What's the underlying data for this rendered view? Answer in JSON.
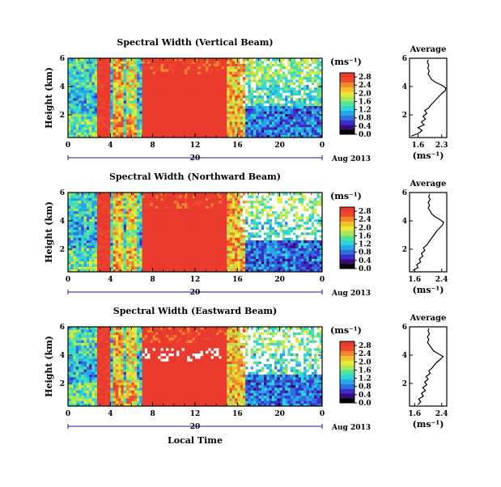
{
  "colors": {
    "colormap": [
      "#000000",
      "#3a0a78",
      "#3b2fc9",
      "#2f6fe0",
      "#27a7e8",
      "#2fd6d8",
      "#55e39a",
      "#a6e85a",
      "#e6e83a",
      "#f2c02c",
      "#f3862a",
      "#ec4a30",
      "#ea3a2e"
    ],
    "axis": "#000000",
    "date_axis_line": "#1a1aa0"
  },
  "xlabel": "Local Time",
  "date_label": "Aug 2013",
  "colorbar_unit": "(ms⁻¹)",
  "avg_title": "Average",
  "avg_unit": "(ms⁻¹)",
  "chart_data": [
    {
      "type": "heatmap",
      "title": "Spectral Width (Vertical Beam)",
      "ylabel": "Height (km)",
      "x_ticks": [
        "0",
        "4",
        "8",
        "12",
        "16",
        "20",
        "0"
      ],
      "y_ticks": [
        "6",
        "4",
        "2"
      ],
      "date_day": "20",
      "xlim": [
        0,
        24
      ],
      "ylim": [
        0.4,
        6
      ],
      "colorbar_ticks": [
        "2.8",
        "2.4",
        "2.0",
        "1.6",
        "1.2",
        "0.8",
        "0.4",
        "0.0"
      ],
      "clim": [
        0,
        3
      ],
      "avg": {
        "type": "line",
        "x_ticks": [
          "1.6",
          "2.3"
        ],
        "xlim": [
          1.35,
          2.45
        ],
        "y_ticks": [
          "6",
          "4",
          "2"
        ],
        "ylim": [
          0.4,
          6
        ],
        "height": [
          0.5,
          0.7,
          0.9,
          1.1,
          1.3,
          1.5,
          1.7,
          1.9,
          2.1,
          2.3,
          2.5,
          2.7,
          2.9,
          3.1,
          3.3,
          3.5,
          3.7,
          3.9,
          4.1,
          4.3,
          4.5,
          4.7,
          4.9,
          5.1,
          5.3,
          5.5,
          5.7,
          5.9
        ],
        "value": [
          1.4,
          1.62,
          1.72,
          1.6,
          1.78,
          1.7,
          1.82,
          1.75,
          1.86,
          1.8,
          1.92,
          1.98,
          2.06,
          2.14,
          2.22,
          2.3,
          2.4,
          2.42,
          2.3,
          2.12,
          2.0,
          1.95,
          1.9,
          1.93,
          1.89,
          1.92,
          1.88,
          1.9
        ]
      }
    },
    {
      "type": "heatmap",
      "title": "Spectral Width (Northward Beam)",
      "ylabel": "Height (km)",
      "x_ticks": [
        "0",
        "4",
        "8",
        "12",
        "16",
        "20",
        "0"
      ],
      "y_ticks": [
        "6",
        "4",
        "2"
      ],
      "date_day": "20",
      "xlim": [
        0,
        24
      ],
      "ylim": [
        0.4,
        6
      ],
      "colorbar_ticks": [
        "2.8",
        "2.4",
        "2.0",
        "1.6",
        "1.2",
        "0.8",
        "0.4",
        "0.0"
      ],
      "clim": [
        0,
        3
      ],
      "avg": {
        "type": "line",
        "x_ticks": [
          "1.6",
          "2.4"
        ],
        "xlim": [
          1.45,
          2.55
        ],
        "y_ticks": [
          "6",
          "4",
          "2"
        ],
        "ylim": [
          0.4,
          6
        ],
        "height": [
          0.5,
          0.7,
          0.9,
          1.1,
          1.3,
          1.5,
          1.7,
          1.9,
          2.1,
          2.3,
          2.5,
          2.7,
          2.9,
          3.1,
          3.3,
          3.5,
          3.7,
          3.9,
          4.1,
          4.3,
          4.5,
          4.7,
          4.9,
          5.1,
          5.3,
          5.5,
          5.7,
          5.9
        ],
        "value": [
          1.55,
          1.7,
          1.66,
          1.78,
          1.74,
          1.84,
          1.8,
          1.9,
          1.86,
          1.96,
          2.02,
          2.08,
          2.14,
          2.2,
          2.26,
          2.34,
          2.42,
          2.46,
          2.34,
          2.2,
          2.1,
          2.06,
          2.0,
          2.04,
          2.0,
          2.06,
          2.02,
          2.04
        ]
      }
    },
    {
      "type": "heatmap",
      "title": "Spectral Width (Eastward Beam)",
      "ylabel": "Height (km)",
      "x_ticks": [
        "0",
        "4",
        "8",
        "12",
        "16",
        "20",
        "0"
      ],
      "y_ticks": [
        "6",
        "4",
        "2"
      ],
      "date_day": "20",
      "xlim": [
        0,
        24
      ],
      "ylim": [
        0.4,
        6
      ],
      "colorbar_ticks": [
        "2.8",
        "2.4",
        "2.0",
        "1.6",
        "1.2",
        "0.8",
        "0.4",
        "0.0"
      ],
      "clim": [
        0,
        3
      ],
      "avg": {
        "type": "line",
        "x_ticks": [
          "1.6",
          "2.4"
        ],
        "xlim": [
          1.45,
          2.55
        ],
        "y_ticks": [
          "6",
          "4",
          "2"
        ],
        "ylim": [
          0.4,
          6
        ],
        "height": [
          0.5,
          0.7,
          0.9,
          1.1,
          1.3,
          1.5,
          1.7,
          1.9,
          2.1,
          2.3,
          2.5,
          2.7,
          2.9,
          3.1,
          3.3,
          3.5,
          3.7,
          3.9,
          4.1,
          4.3,
          4.5,
          4.7,
          4.9,
          5.1,
          5.3,
          5.5,
          5.7,
          5.9
        ],
        "value": [
          1.7,
          1.78,
          1.72,
          1.86,
          1.8,
          1.92,
          1.84,
          1.96,
          1.9,
          2.0,
          1.94,
          2.06,
          2.02,
          2.12,
          2.18,
          2.26,
          2.36,
          2.44,
          2.3,
          2.16,
          2.1,
          2.04,
          1.98,
          2.02,
          1.98,
          2.04,
          2.0,
          2.02
        ]
      }
    }
  ]
}
